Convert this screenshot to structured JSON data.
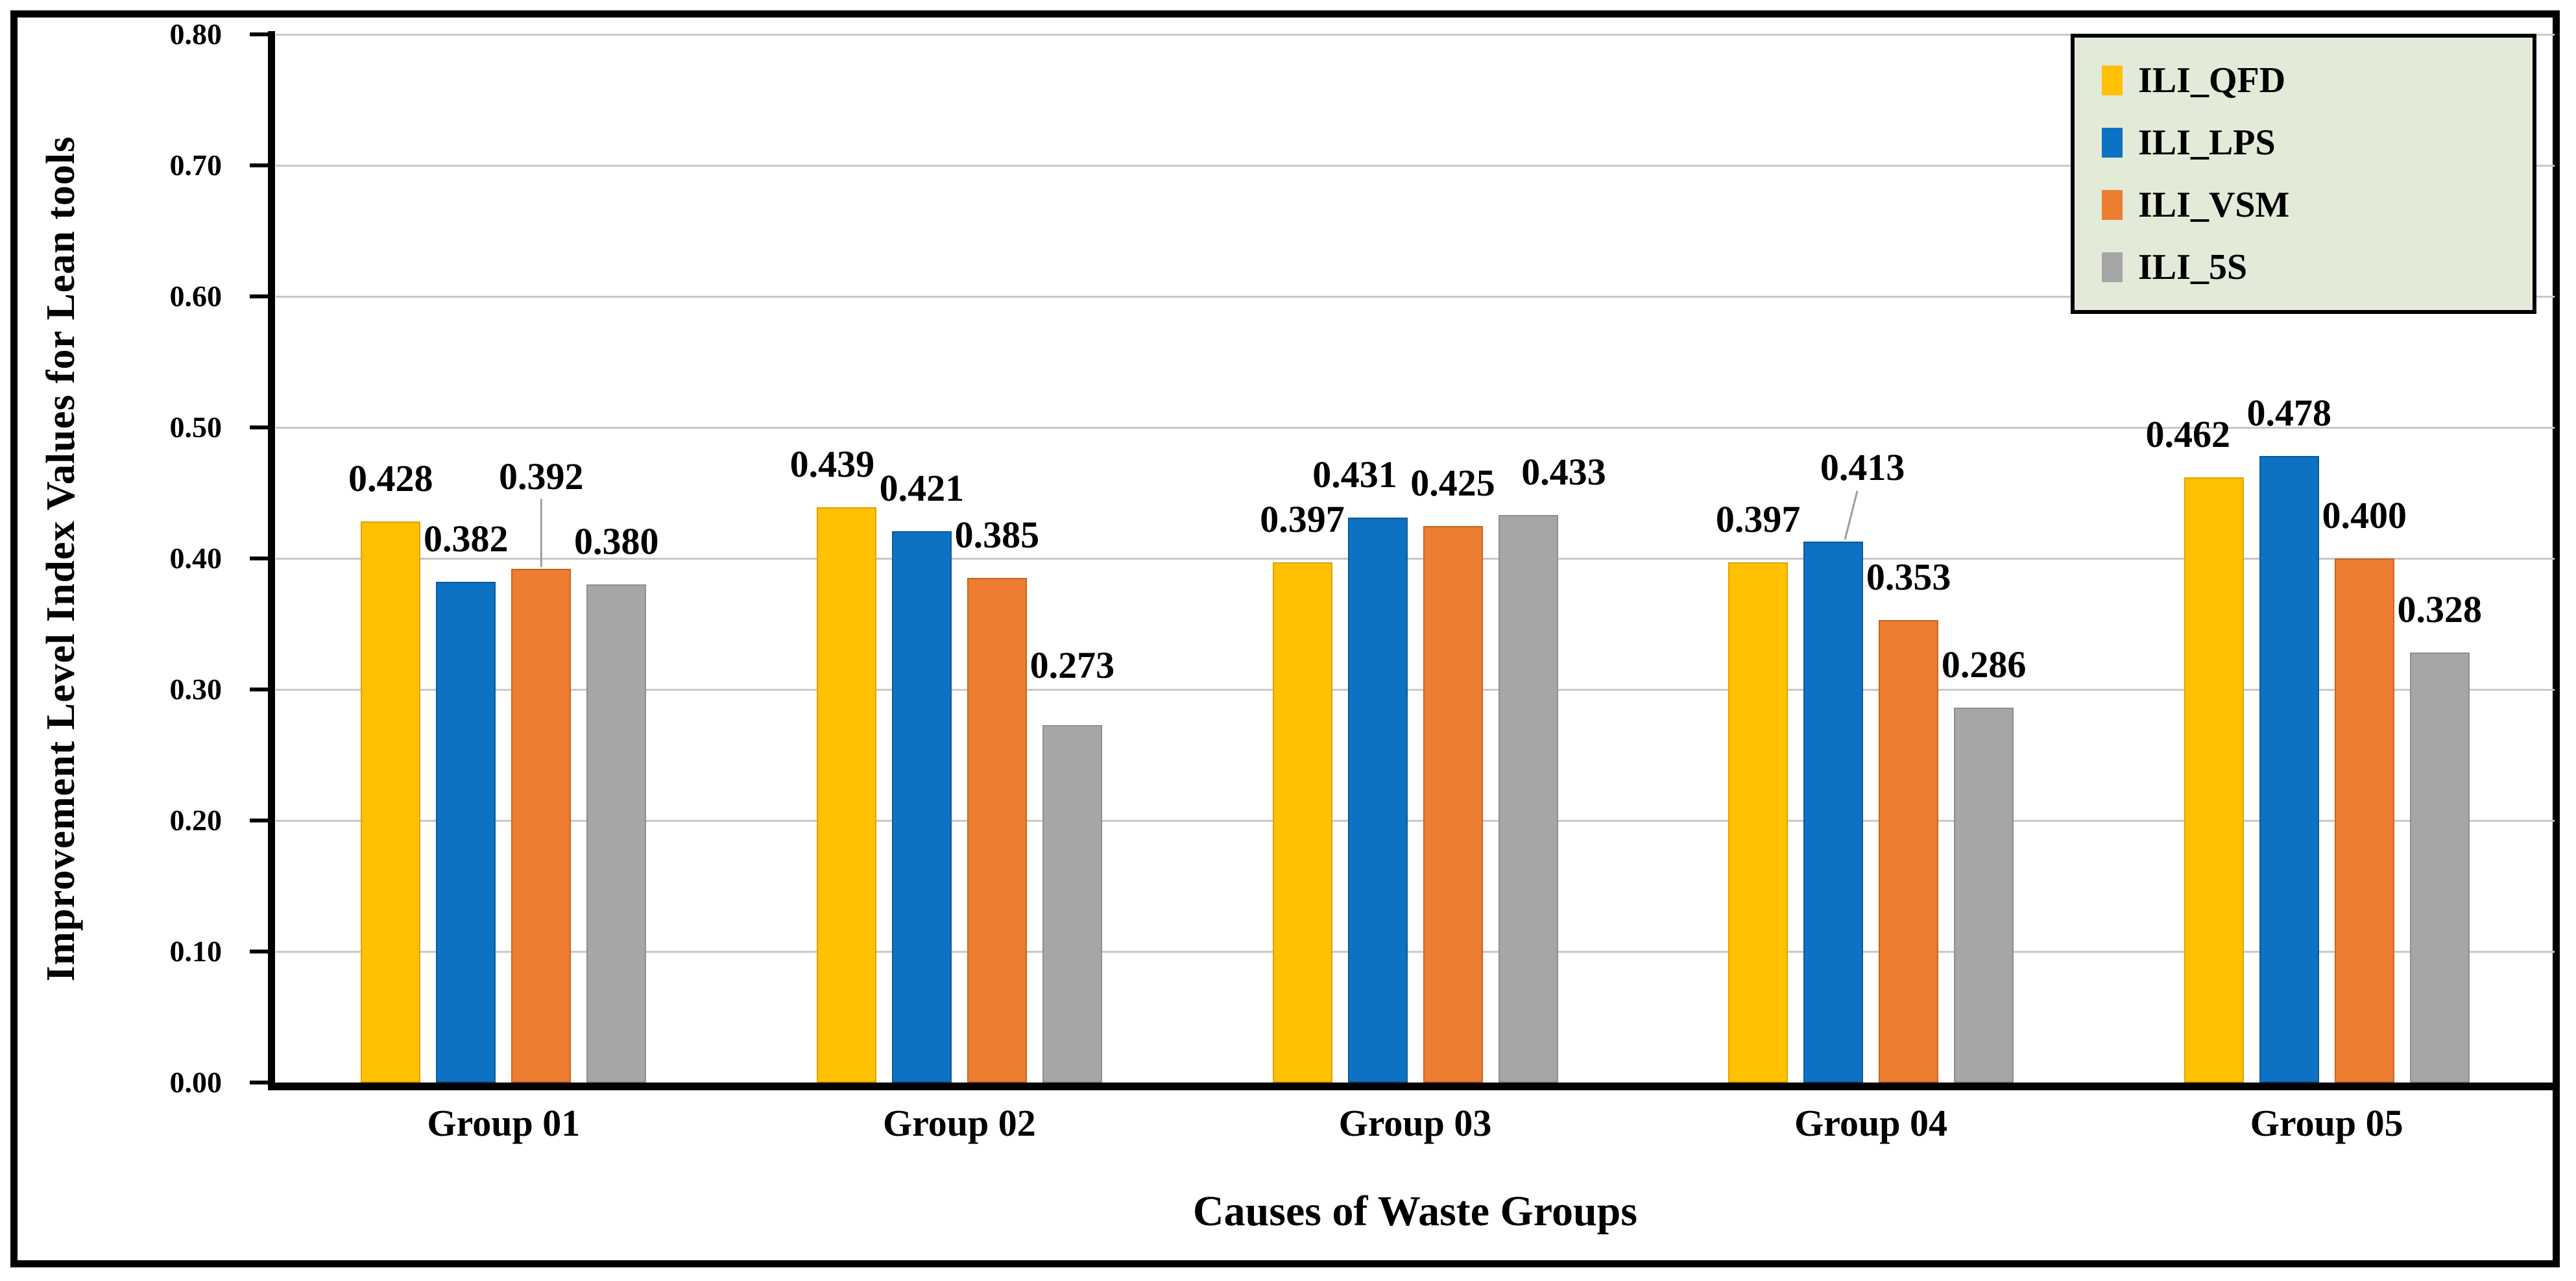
{
  "chart_data": {
    "type": "bar",
    "title": "",
    "xlabel": "Causes of Waste Groups",
    "ylabel": "Improvement Level Index Values for Lean tools",
    "categories": [
      "Group 01",
      "Group 02",
      "Group 03",
      "Group 04",
      "Group 05"
    ],
    "series": [
      {
        "name": "ILI_QFD",
        "color": "#FFC000",
        "edge": "#DFA300",
        "values": [
          0.428,
          0.439,
          0.397,
          0.397,
          0.462
        ],
        "value_labels": [
          "0.428",
          "0.439",
          "0.397",
          "0.397",
          "0.462"
        ]
      },
      {
        "name": "ILI_LPS",
        "color": "#0D72C4",
        "edge": "#0A5A9E",
        "values": [
          0.382,
          0.421,
          0.431,
          0.413,
          0.478
        ],
        "value_labels": [
          "0.382",
          "0.421",
          "0.431",
          "0.413",
          "0.478"
        ]
      },
      {
        "name": "ILI_VSM",
        "color": "#ED7D31",
        "edge": "#C96320",
        "values": [
          0.392,
          0.385,
          0.425,
          0.353,
          0.4
        ],
        "value_labels": [
          "0.392",
          "0.385",
          "0.425",
          "0.353",
          "0.400"
        ]
      },
      {
        "name": "ILI_5S",
        "color": "#A6A6A6",
        "edge": "#8F8F8F",
        "values": [
          0.38,
          0.273,
          0.433,
          0.286,
          0.328
        ],
        "value_labels": [
          "0.380",
          "0.273",
          "0.433",
          "0.286",
          "0.328"
        ]
      }
    ],
    "ylim": [
      0.0,
      0.8
    ],
    "ytick_step": 0.1,
    "ytick_labels": [
      "0.00",
      "0.10",
      "0.20",
      "0.30",
      "0.40",
      "0.50",
      "0.60",
      "0.70",
      "0.80"
    ],
    "grid": true,
    "legend_position": "top-right"
  },
  "legend": {
    "items": [
      "ILI_QFD",
      "ILI_LPS",
      "ILI_VSM",
      "ILI_5S"
    ]
  },
  "colors": {
    "background": "#FFFFFF",
    "frame": "#000000",
    "axis": "#000000",
    "gridline": "#C9C9C9",
    "legend_bg": "#E3EAD8",
    "legend_border": "#000000",
    "leader_line": "#9E9E9E"
  }
}
